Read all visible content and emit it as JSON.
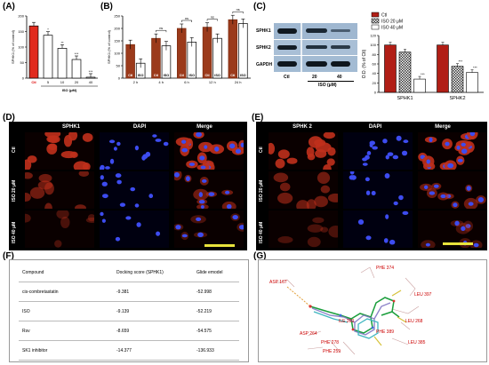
{
  "panels": {
    "a": {
      "label": "(A)"
    },
    "b": {
      "label": "(B)"
    },
    "c": {
      "label": "(C)"
    },
    "d": {
      "label": "(D)"
    },
    "e": {
      "label": "(E)"
    },
    "f": {
      "label": "(F)"
    },
    "g": {
      "label": "(G)"
    }
  },
  "chart_data": [
    {
      "type": "bar",
      "categories": [
        "Ctl",
        "5",
        "10",
        "20",
        "40"
      ],
      "values": [
        168,
        138,
        96,
        60,
        3
      ],
      "significance": [
        "",
        "*",
        "**",
        "***",
        "***"
      ],
      "ylabel": "SPHK1 (% of control)",
      "xlabel": "ISO (μM)",
      "yticks": [
        "0",
        "50",
        "100",
        "150",
        "200"
      ],
      "ylim": [
        0,
        200
      ],
      "colors": [
        "#e12b1e",
        "#ffffff"
      ]
    },
    {
      "type": "bar",
      "categories": [
        "Ctl",
        "ISO",
        "Ctl",
        "ISO",
        "Ctl",
        "ISO",
        "Ctl",
        "ISO",
        "Ctl",
        "ISO"
      ],
      "groups": [
        "2 h",
        "4 h",
        "6 h",
        "12 h",
        "24 h"
      ],
      "values": [
        135,
        60,
        160,
        130,
        200,
        145,
        205,
        160,
        235,
        220
      ],
      "significance_labels": [
        "ns",
        "ns",
        "ns",
        "ns"
      ],
      "ylabel": "SPHK1 (% of control)",
      "yticks": [
        "0",
        "50",
        "100",
        "150",
        "200",
        "250"
      ],
      "ylim": [
        0,
        250
      ],
      "colors": [
        "#9b3a1b",
        "#ffffff"
      ]
    },
    {
      "type": "bar",
      "categories": [
        "SPHK1",
        "SPHK2"
      ],
      "series": [
        {
          "name": "Ctl",
          "values": [
            100,
            100
          ]
        },
        {
          "name": "ISO 20 μM",
          "values": [
            85,
            55
          ]
        },
        {
          "name": "ISO 40 μM",
          "values": [
            28,
            42
          ]
        }
      ],
      "significance": [
        "***",
        "***",
        "***"
      ],
      "ylabel": "O.D. (% of Ctl)",
      "yticks": [
        "0",
        "20",
        "40",
        "60",
        "80",
        "100",
        "120"
      ],
      "ylim": [
        0,
        120
      ]
    }
  ],
  "blot": {
    "rows": [
      "SPHK1",
      "SPHK2",
      "GAPDH"
    ],
    "lanes": [
      "Ctl",
      "20",
      "40"
    ],
    "xlabel": "ISO (μM)"
  },
  "micro_d": {
    "columns": [
      "SPHK1",
      "DAPI",
      "Merge"
    ],
    "rows": [
      "Ctl",
      "ISO 20 μM",
      "ISO 40 μM"
    ]
  },
  "micro_e": {
    "columns": [
      "SPHK 2",
      "DAPI",
      "Merge"
    ],
    "rows": [
      "Ctl",
      "ISO 20 μM",
      "ISO 40 μM"
    ]
  },
  "docking_table": {
    "headers": [
      "Compound",
      "Docking score (SPHK1)",
      "Glide emodel"
    ],
    "rows": [
      [
        "cis-combretastatin",
        "-9.381",
        "-52.998"
      ],
      [
        "ISO",
        "-9.139",
        "-52.219"
      ],
      [
        "Rsv",
        "-8.659",
        "-54.575"
      ],
      [
        "SK1 inhibitor",
        "-14.377",
        "-136.933"
      ]
    ]
  },
  "residues": [
    "ASP 167",
    "PHE 374",
    "LEU 397",
    "LEU 268",
    "PHE 389",
    "ILE 260",
    "ASP 264",
    "PHE 278",
    "PHE 259",
    "LEU 385"
  ]
}
